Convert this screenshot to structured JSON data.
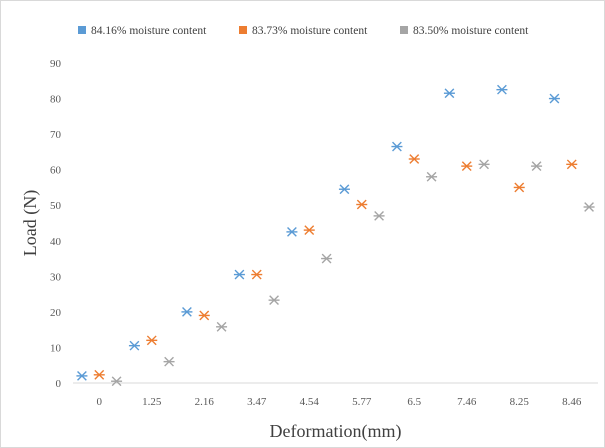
{
  "chart_data": {
    "type": "scatter",
    "xlabel": "Deformation(mm)",
    "ylabel": "Load (N)",
    "ylim": [
      0,
      90
    ],
    "yticks": [
      0,
      10,
      20,
      30,
      40,
      50,
      60,
      70,
      80,
      90
    ],
    "categories": [
      "0",
      "1.25",
      "2.16",
      "3.47",
      "4.54",
      "5.77",
      "6.5",
      "7.46",
      "8.25",
      "8.46"
    ],
    "grid": false,
    "legend_position": "top",
    "marker": "asterisk",
    "series": [
      {
        "name": "84.16% moisture content",
        "color": "#5b9bd5",
        "points": [
          {
            "x": -0.33,
            "y": 2
          },
          {
            "x": 0.67,
            "y": 10.5
          },
          {
            "x": 1.67,
            "y": 20
          },
          {
            "x": 2.67,
            "y": 30.5
          },
          {
            "x": 3.67,
            "y": 42.5
          },
          {
            "x": 4.67,
            "y": 54.5
          },
          {
            "x": 5.67,
            "y": 66.5
          },
          {
            "x": 6.67,
            "y": 81.5
          },
          {
            "x": 7.67,
            "y": 82.5
          },
          {
            "x": 8.67,
            "y": 80
          }
        ]
      },
      {
        "name": "83.73% moisture content",
        "color": "#ed7d31",
        "points": [
          {
            "x": 0,
            "y": 2.3
          },
          {
            "x": 1,
            "y": 12
          },
          {
            "x": 2,
            "y": 19
          },
          {
            "x": 3,
            "y": 30.5
          },
          {
            "x": 4,
            "y": 43
          },
          {
            "x": 5,
            "y": 50.2
          },
          {
            "x": 6,
            "y": 63
          },
          {
            "x": 7,
            "y": 61
          },
          {
            "x": 8,
            "y": 55
          },
          {
            "x": 9,
            "y": 61.5
          }
        ]
      },
      {
        "name": "83.50% moisture content",
        "color": "#a5a5a5",
        "points": [
          {
            "x": 0.33,
            "y": 0.5
          },
          {
            "x": 1.33,
            "y": 6
          },
          {
            "x": 2.33,
            "y": 15.8
          },
          {
            "x": 3.33,
            "y": 23.3
          },
          {
            "x": 4.33,
            "y": 35
          },
          {
            "x": 5.33,
            "y": 47
          },
          {
            "x": 6.33,
            "y": 58
          },
          {
            "x": 7.33,
            "y": 61.5
          },
          {
            "x": 8.33,
            "y": 61
          },
          {
            "x": 9.33,
            "y": 49.5
          }
        ]
      }
    ]
  }
}
